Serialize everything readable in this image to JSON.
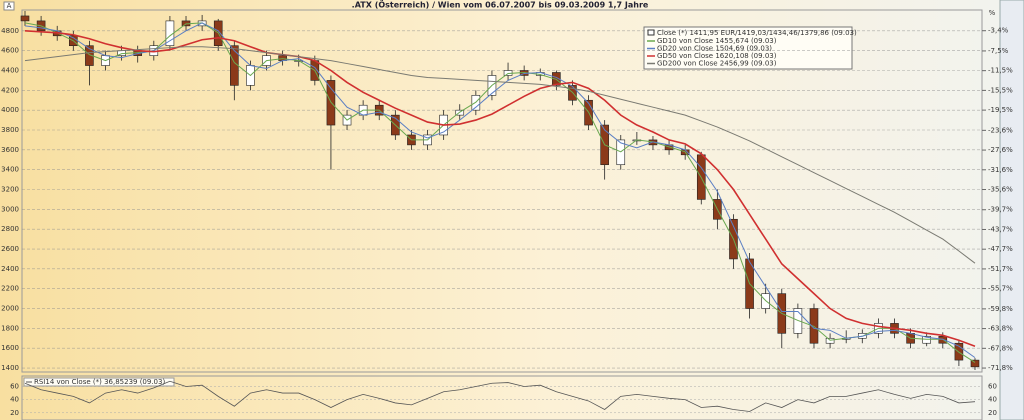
{
  "chart_data": [
    {
      "type": "candlestick",
      "title": ".ATX (Österreich) / Wien vom 06.07.2007 bis 09.03.2009 1,7 Jahre",
      "ylabel": "A",
      "y2label": "%",
      "ylim": [
        1360,
        5010
      ],
      "yticks": [
        1400,
        1600,
        1800,
        2000,
        2200,
        2400,
        2600,
        2800,
        3000,
        3200,
        3400,
        3600,
        3800,
        4000,
        4200,
        4400,
        4600,
        4800
      ],
      "y2lim": [
        -72.6,
        0.8
      ],
      "y2ticks": [
        {
          "value": -71.8,
          "label": "-71,8%"
        },
        {
          "value": -67.8,
          "label": "-67,8%"
        },
        {
          "value": -63.8,
          "label": "-63,8%"
        },
        {
          "value": -59.8,
          "label": "-59,8%"
        },
        {
          "value": -55.7,
          "label": "-55,7%"
        },
        {
          "value": -51.7,
          "label": "-51,7%"
        },
        {
          "value": -47.7,
          "label": "-47,7%"
        },
        {
          "value": -43.7,
          "label": "-43,7%"
        },
        {
          "value": -39.7,
          "label": "-39,7%"
        },
        {
          "value": -35.6,
          "label": "-35,6%"
        },
        {
          "value": -31.6,
          "label": "-31,6%"
        },
        {
          "value": -27.6,
          "label": "-27,6%"
        },
        {
          "value": -23.6,
          "label": "-23,6%"
        },
        {
          "value": -19.5,
          "label": "-19,5%"
        },
        {
          "value": -15.5,
          "label": "-15,5%"
        },
        {
          "value": -11.5,
          "label": "-11,5%"
        },
        {
          "value": -7.5,
          "label": "-7,5%"
        },
        {
          "value": -3.4,
          "label": "-3,4%"
        }
      ],
      "grid": true,
      "candles": {
        "name": "Close (*) 1411,95 EUR/1419,03/1434,46/1379,86 (09.03)",
        "up_color": "#ffffff",
        "down_color": "#8b3a1a",
        "open": [
          4950,
          4900,
          4800,
          4750,
          4650,
          4450,
          4550,
          4600,
          4550,
          4650,
          4900,
          4850,
          4900,
          4650,
          4250,
          4450,
          4550,
          4500,
          4500,
          4300,
          3850,
          3950,
          4050,
          3950,
          3750,
          3650,
          3750,
          3950,
          4000,
          4150,
          4350,
          4400,
          4350,
          4380,
          4250,
          4100,
          3850,
          3450,
          3700,
          3700,
          3650,
          3600,
          3550,
          3100,
          2900,
          2500,
          2000,
          2150,
          1750,
          2000,
          1650,
          1700,
          1700,
          1750,
          1850,
          1750,
          1650,
          1720,
          1650,
          1480
        ],
        "high": [
          5000,
          4950,
          4850,
          4800,
          4700,
          4600,
          4650,
          4650,
          4700,
          4950,
          4950,
          4960,
          4920,
          4700,
          4500,
          4600,
          4600,
          4560,
          4550,
          4350,
          4000,
          4100,
          4100,
          4000,
          3800,
          3800,
          4000,
          4060,
          4200,
          4400,
          4480,
          4450,
          4420,
          4400,
          4300,
          4150,
          3900,
          3750,
          3780,
          3740,
          3700,
          3650,
          3580,
          3200,
          2950,
          2560,
          2250,
          2200,
          2050,
          2050,
          1750,
          1780,
          1790,
          1900,
          1900,
          1800,
          1760,
          1760,
          1680,
          1500
        ],
        "low": [
          4850,
          4750,
          4700,
          4600,
          4250,
          4400,
          4500,
          4480,
          4500,
          4600,
          4800,
          4800,
          4600,
          4100,
          4200,
          4400,
          4450,
          4440,
          4250,
          3400,
          3800,
          3900,
          3900,
          3700,
          3600,
          3600,
          3700,
          3900,
          3950,
          4100,
          4300,
          4300,
          4300,
          4200,
          4050,
          3800,
          3300,
          3400,
          3650,
          3600,
          3550,
          3500,
          3050,
          2800,
          2400,
          1900,
          1950,
          1600,
          1700,
          1600,
          1600,
          1650,
          1650,
          1700,
          1700,
          1600,
          1620,
          1600,
          1420,
          1380
        ],
        "close": [
          4900,
          4800,
          4750,
          4650,
          4450,
          4550,
          4600,
          4550,
          4650,
          4900,
          4850,
          4900,
          4650,
          4250,
          4450,
          4550,
          4500,
          4500,
          4300,
          3850,
          3950,
          4050,
          3950,
          3750,
          3650,
          3750,
          3950,
          4000,
          4150,
          4350,
          4400,
          4350,
          4380,
          4250,
          4100,
          3850,
          3450,
          3700,
          3700,
          3650,
          3600,
          3550,
          3100,
          2900,
          2500,
          2000,
          2150,
          1750,
          2000,
          1650,
          1700,
          1700,
          1750,
          1850,
          1750,
          1650,
          1720,
          1650,
          1480,
          1412
        ]
      },
      "series": [
        {
          "name": "GD10 von Close 1455,674 (09.03)",
          "color": "#6aa84f",
          "values": [
            4880,
            4850,
            4780,
            4700,
            4560,
            4500,
            4570,
            4580,
            4600,
            4750,
            4870,
            4880,
            4780,
            4480,
            4350,
            4500,
            4520,
            4500,
            4400,
            4080,
            3900,
            4000,
            4000,
            3850,
            3700,
            3700,
            3850,
            3980,
            4080,
            4250,
            4370,
            4380,
            4360,
            4310,
            4180,
            3980,
            3650,
            3580,
            3700,
            3680,
            3630,
            3580,
            3320,
            3000,
            2700,
            2250,
            2080,
            1950,
            1880,
            1820,
            1680,
            1700,
            1720,
            1800,
            1800,
            1700,
            1690,
            1690,
            1560,
            1456
          ]
        },
        {
          "name": "GD20 von Close 1504,69 (09.03)",
          "color": "#5b7fc4",
          "values": [
            4850,
            4830,
            4800,
            4730,
            4620,
            4550,
            4530,
            4570,
            4600,
            4700,
            4800,
            4880,
            4800,
            4600,
            4450,
            4420,
            4500,
            4520,
            4430,
            4220,
            4030,
            3950,
            3980,
            3920,
            3780,
            3720,
            3780,
            3900,
            4030,
            4170,
            4300,
            4370,
            4380,
            4330,
            4240,
            4070,
            3800,
            3670,
            3620,
            3680,
            3650,
            3600,
            3420,
            3180,
            2830,
            2470,
            2220,
            1970,
            1970,
            1800,
            1780,
            1700,
            1720,
            1770,
            1780,
            1750,
            1710,
            1690,
            1620,
            1505
          ]
        },
        {
          "name": "GD50 von Close 1620,108 (09.03)",
          "color": "#d03030",
          "values": [
            4800,
            4790,
            4780,
            4760,
            4720,
            4670,
            4630,
            4600,
            4590,
            4610,
            4660,
            4710,
            4730,
            4700,
            4640,
            4580,
            4560,
            4540,
            4500,
            4400,
            4280,
            4180,
            4100,
            4020,
            3950,
            3880,
            3850,
            3860,
            3900,
            3960,
            4050,
            4140,
            4220,
            4260,
            4280,
            4220,
            4100,
            3950,
            3850,
            3780,
            3700,
            3660,
            3560,
            3400,
            3200,
            2950,
            2700,
            2450,
            2300,
            2150,
            2000,
            1900,
            1850,
            1820,
            1800,
            1780,
            1750,
            1730,
            1680,
            1620
          ]
        },
        {
          "name": "GD200 von Close 2456,99 (09.03)",
          "color": "#7a7a72",
          "values": [
            4500,
            4520,
            4540,
            4560,
            4580,
            4590,
            4600,
            4610,
            4620,
            4630,
            4640,
            4640,
            4630,
            4620,
            4600,
            4580,
            4560,
            4540,
            4520,
            4500,
            4470,
            4440,
            4410,
            4380,
            4350,
            4330,
            4320,
            4310,
            4300,
            4290,
            4280,
            4270,
            4260,
            4240,
            4220,
            4190,
            4150,
            4110,
            4070,
            4030,
            3990,
            3950,
            3890,
            3830,
            3760,
            3690,
            3610,
            3530,
            3450,
            3370,
            3290,
            3210,
            3130,
            3050,
            2970,
            2880,
            2790,
            2700,
            2580,
            2457
          ]
        }
      ]
    },
    {
      "type": "line",
      "ylim": [
        9,
        76
      ],
      "yticks": [
        20,
        40,
        60
      ],
      "series": [
        {
          "name": "RSI14 von Close (*) 36,85239 (09.03)",
          "color": "#555555",
          "values": [
            65,
            55,
            50,
            45,
            35,
            50,
            55,
            50,
            58,
            68,
            60,
            62,
            45,
            30,
            50,
            55,
            50,
            50,
            40,
            28,
            40,
            48,
            42,
            35,
            32,
            42,
            52,
            55,
            60,
            65,
            66,
            60,
            62,
            52,
            45,
            38,
            25,
            45,
            48,
            45,
            42,
            40,
            28,
            30,
            25,
            22,
            35,
            28,
            40,
            35,
            45,
            45,
            50,
            55,
            48,
            42,
            48,
            45,
            35,
            36.85
          ]
        }
      ]
    }
  ]
}
